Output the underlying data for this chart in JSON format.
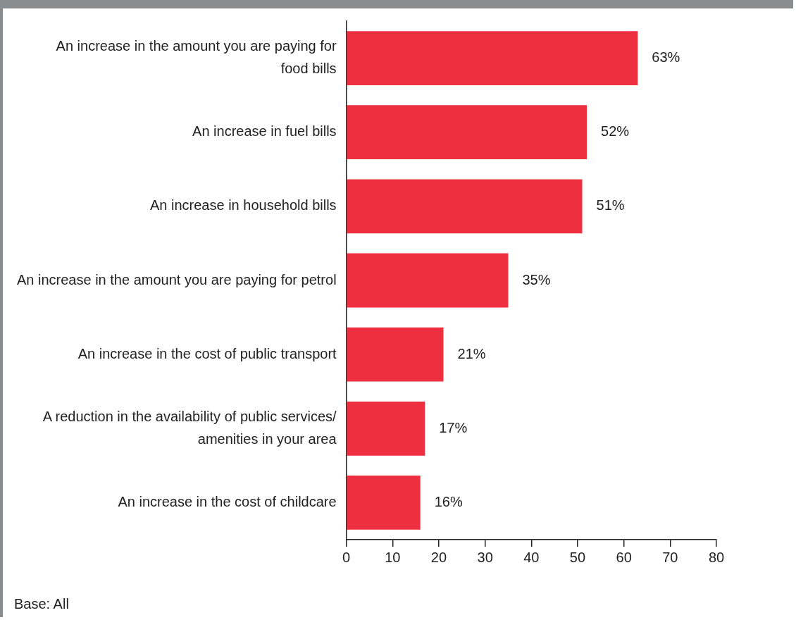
{
  "chart_data": {
    "type": "bar",
    "orientation": "horizontal",
    "categories": [
      "An increase in the amount you are paying for\nfood bills",
      "An increase in fuel bills",
      "An increase in household bills",
      "An increase in the amount you are paying for petrol",
      "An increase in the cost of public transport",
      "A reduction in the availability of public services/\namenities in your area",
      "An increase in the cost of childcare"
    ],
    "values": [
      63,
      52,
      51,
      35,
      21,
      17,
      16
    ],
    "value_labels": [
      "63%",
      "52%",
      "51%",
      "35%",
      "21%",
      "17%",
      "16%"
    ],
    "color": "#ee2f3f",
    "xlim": [
      0,
      80
    ],
    "xticks": [
      0,
      10,
      20,
      30,
      40,
      50,
      60,
      70,
      80
    ],
    "grid": false,
    "legend": false,
    "annotations": [
      "Base: All"
    ]
  }
}
